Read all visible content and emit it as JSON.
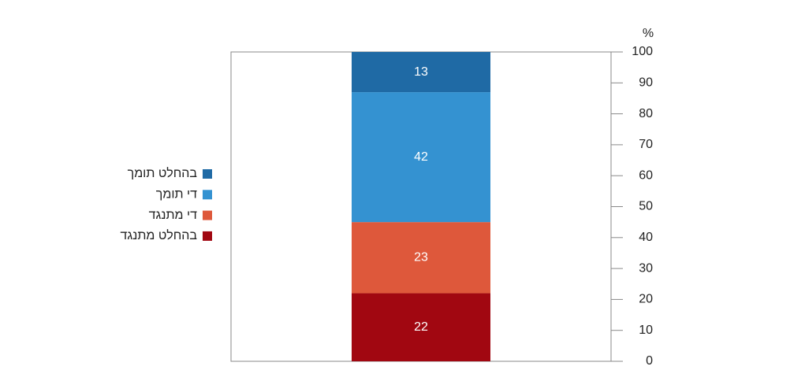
{
  "chart_data": {
    "type": "stacked_bar",
    "y_label": "%",
    "categories": [
      null
    ],
    "series": [
      {
        "name": "בהחלט תומך",
        "color": "#1f6aa5",
        "values": [
          13
        ]
      },
      {
        "name": "די תומך",
        "color": "#3492d1",
        "values": [
          42
        ]
      },
      {
        "name": "די מתנגד",
        "color": "#de583b",
        "values": [
          23
        ]
      },
      {
        "name": "בהחלט מתנגד",
        "color": "#a10711",
        "values": [
          22
        ]
      }
    ],
    "ylim": [
      0,
      100
    ],
    "yticks": [
      0,
      10,
      20,
      30,
      40,
      50,
      60,
      70,
      80,
      90,
      100
    ],
    "legend": "left"
  }
}
